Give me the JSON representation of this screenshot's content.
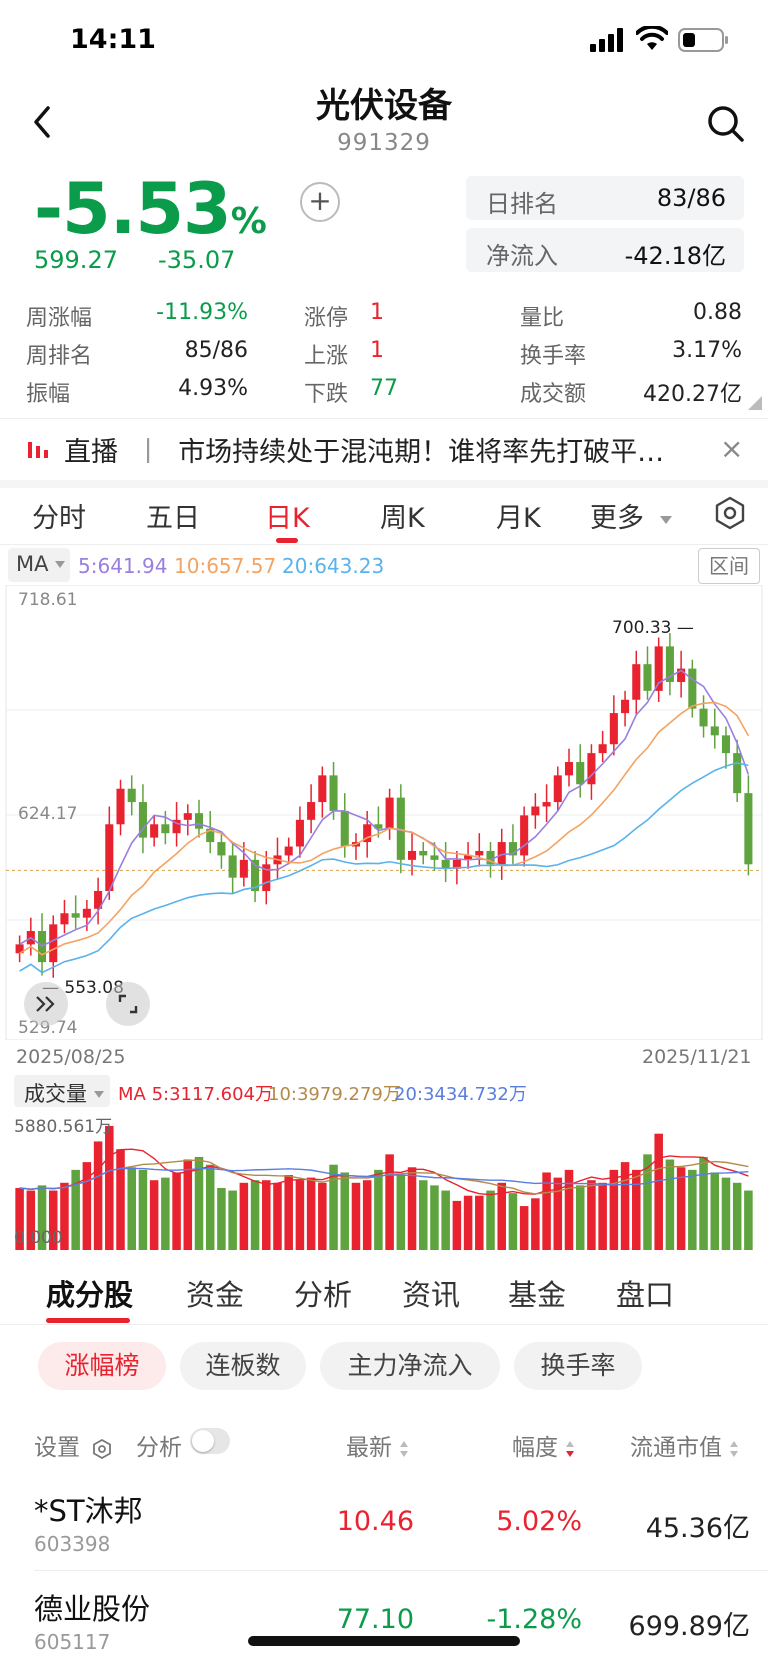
{
  "status": {
    "time": "14:11"
  },
  "header": {
    "title": "光伏设备",
    "code": "991329"
  },
  "quote": {
    "change_pct": "-5.53",
    "pct_sign": "%",
    "price": "599.27",
    "change": "-35.07",
    "plus_label": "+",
    "day_rank_label": "日排名",
    "day_rank_value": "83/86",
    "net_inflow_label": "净流入",
    "net_inflow_value": "-42.18亿"
  },
  "stats": {
    "week_change_label": "周涨幅",
    "week_change_value": "-11.93%",
    "week_rank_label": "周排名",
    "week_rank_value": "85/86",
    "amplitude_label": "振幅",
    "amplitude_value": "4.93%",
    "limit_up_label": "涨停",
    "limit_up_value": "1",
    "up_label": "上涨",
    "up_value": "1",
    "down_label": "下跌",
    "down_value": "77",
    "volume_ratio_label": "量比",
    "volume_ratio_value": "0.88",
    "turnover_label": "换手率",
    "turnover_value": "3.17%",
    "amount_label": "成交额",
    "amount_value": "420.27亿"
  },
  "live": {
    "tag": "直播",
    "divider": "丨",
    "text": "市场持续处于混沌期！谁将率先打破平…",
    "close": "×"
  },
  "tabs": [
    "分时",
    "五日",
    "日K",
    "周K",
    "月K",
    "更多"
  ],
  "chart_controls": {
    "ma_label": "MA",
    "ma5": "5:641.94",
    "ma10": "10:657.57",
    "ma20": "20:643.23",
    "range_label": "区间",
    "y_top": "718.61",
    "y_mid": "624.17",
    "y_bottom": "529.74",
    "high_marker": "700.33",
    "low_marker": "553.08",
    "start_date": "2025/08/25",
    "end_date": "2025/11/21",
    "volume_label": "成交量",
    "vol_ma_prefix": "MA",
    "vol_ma5": "5:3117.604万",
    "vol_ma10": "10:3979.279万",
    "vol_ma20": "20:3434.732万",
    "vol_top": "5880.561万",
    "vol_bottom": "0.000",
    "colors": {
      "up": "#e8232f",
      "down": "#5ea33d",
      "ma5": "#9a7fe0",
      "ma10": "#f3a362",
      "ma20": "#5ab2ec"
    }
  },
  "chart_data": {
    "type": "candlestick",
    "x_range": [
      "2025/08/25",
      "2025/11/21"
    ],
    "ylim": [
      529.74,
      718.61
    ],
    "high": 700.33,
    "low": 553.08,
    "last_close": 599.27,
    "ma": {
      "ma5": 641.94,
      "ma10": 657.57,
      "ma20": 643.23
    },
    "volume_ylim": [
      0,
      5880.561
    ],
    "volume_unit": "万",
    "volume_ma": {
      "ma5": 3117.604,
      "ma10": 3979.279,
      "ma20": 3434.732
    }
  },
  "bottom_tabs": [
    "成分股",
    "资金",
    "分析",
    "资讯",
    "基金",
    "盘口"
  ],
  "filters": [
    "涨幅榜",
    "连板数",
    "主力净流入",
    "换手率"
  ],
  "table": {
    "settings_label": "设置",
    "analysis_label": "分析",
    "col_latest": "最新",
    "col_change": "幅度",
    "col_mktcap": "流通市值",
    "rows": [
      {
        "name": "*ST沐邦",
        "code": "603398",
        "latest": "10.46",
        "change": "5.02%",
        "mktcap": "45.36亿"
      },
      {
        "name": "德业股份",
        "code": "605117",
        "latest": "77.10",
        "change": "-1.28%",
        "mktcap": "699.89亿"
      }
    ]
  }
}
